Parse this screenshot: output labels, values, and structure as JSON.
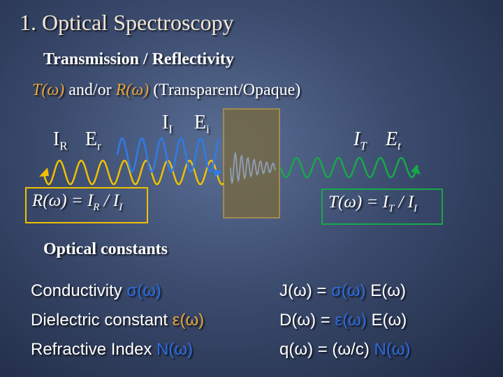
{
  "slide": {
    "title": "1. Optical Spectroscopy",
    "subtitle": "Transmission / Reflectivity",
    "line2": {
      "t": "T(ω)",
      "and": "and/or",
      "r": "R(ω)",
      "paren": "(Transparent/Opaque)"
    }
  },
  "wave_labels": {
    "reflected_i": "I",
    "reflected_i_sub": "R",
    "reflected_e": "E",
    "reflected_e_sub": "r",
    "incident_i": "I",
    "incident_i_sub": "I",
    "incident_e": "E",
    "incident_e_sub": "i",
    "transmitted_i": "I",
    "transmitted_i_sub": "T",
    "transmitted_e": "E",
    "transmitted_e_sub": "t"
  },
  "formulas": {
    "reflect_left": "R(ω) = I",
    "reflect_sub1": "R",
    "reflect_mid": " / I",
    "reflect_sub2": "I",
    "trans_left": "T(ω) = I",
    "trans_sub1": "T",
    "trans_mid": " / I",
    "trans_sub2": "I"
  },
  "constants": {
    "heading": "Optical constants",
    "rows": [
      {
        "label": "Conductivity ",
        "symbol": "σ(ω)"
      },
      {
        "label": "Dielectric constant ",
        "symbol": "ε(ω)"
      },
      {
        "label": "Refractive Index ",
        "symbol": "N(ω)"
      }
    ],
    "equations": [
      {
        "left": "J(ω) = ",
        "symbol": "σ(ω)",
        "right": " E(ω)"
      },
      {
        "left": "D(ω) = ",
        "symbol": "ε(ω)",
        "right": " E(ω)"
      },
      {
        "left": "q(ω) = (ω/c) ",
        "symbol": "N(ω)",
        "right": ""
      }
    ]
  },
  "colors": {
    "incident_wave": "#2f7be8",
    "reflected_wave": "#f0c000",
    "transmitted_wave": "#18a848",
    "sample_fill": "#7a6a3e",
    "sample_border": "#a08a50",
    "accent_gold": "#e8a43a",
    "accent_blue": "#2c6ce0"
  }
}
